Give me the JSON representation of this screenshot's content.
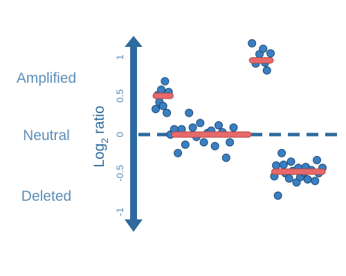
{
  "colors": {
    "axis": "#2e6a9e",
    "point_fill": "#3a7fc1",
    "point_stroke": "#1f4a75",
    "segment_fill": "#e8696a",
    "segment_stroke": "#b04848",
    "label": "#5b8db8"
  },
  "chart_data": {
    "type": "scatter",
    "title": "",
    "ylabel": "Log2 ratio",
    "ylabel_main": "Log",
    "ylabel_sub": "2",
    "ylabel_rest": " ratio",
    "ylim": [
      -1.15,
      1.22
    ],
    "yticks": [
      {
        "value": 1,
        "label": "1"
      },
      {
        "value": 0.5,
        "label": "0.5"
      },
      {
        "value": 0,
        "label": "0"
      },
      {
        "value": -0.5,
        "label": "-0.5"
      },
      {
        "value": -1,
        "label": "-1"
      }
    ],
    "state_labels": [
      {
        "name": "Amplified",
        "value": 0.75
      },
      {
        "name": "Neutral",
        "value": 0.0
      },
      {
        "name": "Deleted",
        "value": -0.79
      }
    ],
    "segments": [
      {
        "id": "segment-1",
        "x": [
          1,
          5
        ],
        "mean": 0.5,
        "points": [
          [
            1,
            0.33
          ],
          [
            1.5,
            0.51
          ],
          [
            2,
            0.42
          ],
          [
            2.5,
            0.58
          ],
          [
            3,
            0.37
          ],
          [
            3.5,
            0.69
          ],
          [
            4,
            0.28
          ],
          [
            4.5,
            0.55
          ],
          [
            5,
            0.0
          ]
        ]
      },
      {
        "id": "segment-2",
        "x": [
          6,
          26
        ],
        "mean": 0.0,
        "points": [
          [
            6,
            0.07
          ],
          [
            7,
            -0.24
          ],
          [
            8,
            0.07
          ],
          [
            9,
            -0.13
          ],
          [
            10,
            0.28
          ],
          [
            11,
            0.09
          ],
          [
            12,
            -0.03
          ],
          [
            13,
            0.15
          ],
          [
            14,
            -0.1
          ],
          [
            15,
            0.02
          ],
          [
            16,
            0.05
          ],
          [
            17,
            -0.15
          ],
          [
            18,
            0.12
          ],
          [
            19,
            0.03
          ],
          [
            20,
            -0.3
          ],
          [
            21,
            -0.1
          ],
          [
            22,
            0.09
          ]
        ]
      },
      {
        "id": "segment-3",
        "x": [
          27,
          32
        ],
        "mean": 0.96,
        "points": [
          [
            27,
            1.18
          ],
          [
            28,
            0.92
          ],
          [
            29,
            1.04
          ],
          [
            30,
            1.11
          ],
          [
            31,
            0.83
          ],
          [
            32,
            1.05
          ],
          [
            30.5,
            0.93
          ]
        ]
      },
      {
        "id": "segment-4",
        "x": [
          33,
          46
        ],
        "mean": -0.48,
        "points": [
          [
            33,
            -0.54
          ],
          [
            33.5,
            -0.4
          ],
          [
            34,
            -0.79
          ],
          [
            35,
            -0.24
          ],
          [
            35.5,
            -0.39
          ],
          [
            36,
            -0.5
          ],
          [
            37,
            -0.57
          ],
          [
            37.5,
            -0.35
          ],
          [
            38,
            -0.47
          ],
          [
            39,
            -0.62
          ],
          [
            39.5,
            -0.43
          ],
          [
            40,
            -0.55
          ],
          [
            41,
            -0.49
          ],
          [
            41.5,
            -0.42
          ],
          [
            42,
            -0.58
          ],
          [
            43,
            -0.46
          ],
          [
            44,
            -0.6
          ],
          [
            44.5,
            -0.33
          ],
          [
            45,
            -0.5
          ],
          [
            46,
            -0.43
          ]
        ]
      }
    ]
  }
}
